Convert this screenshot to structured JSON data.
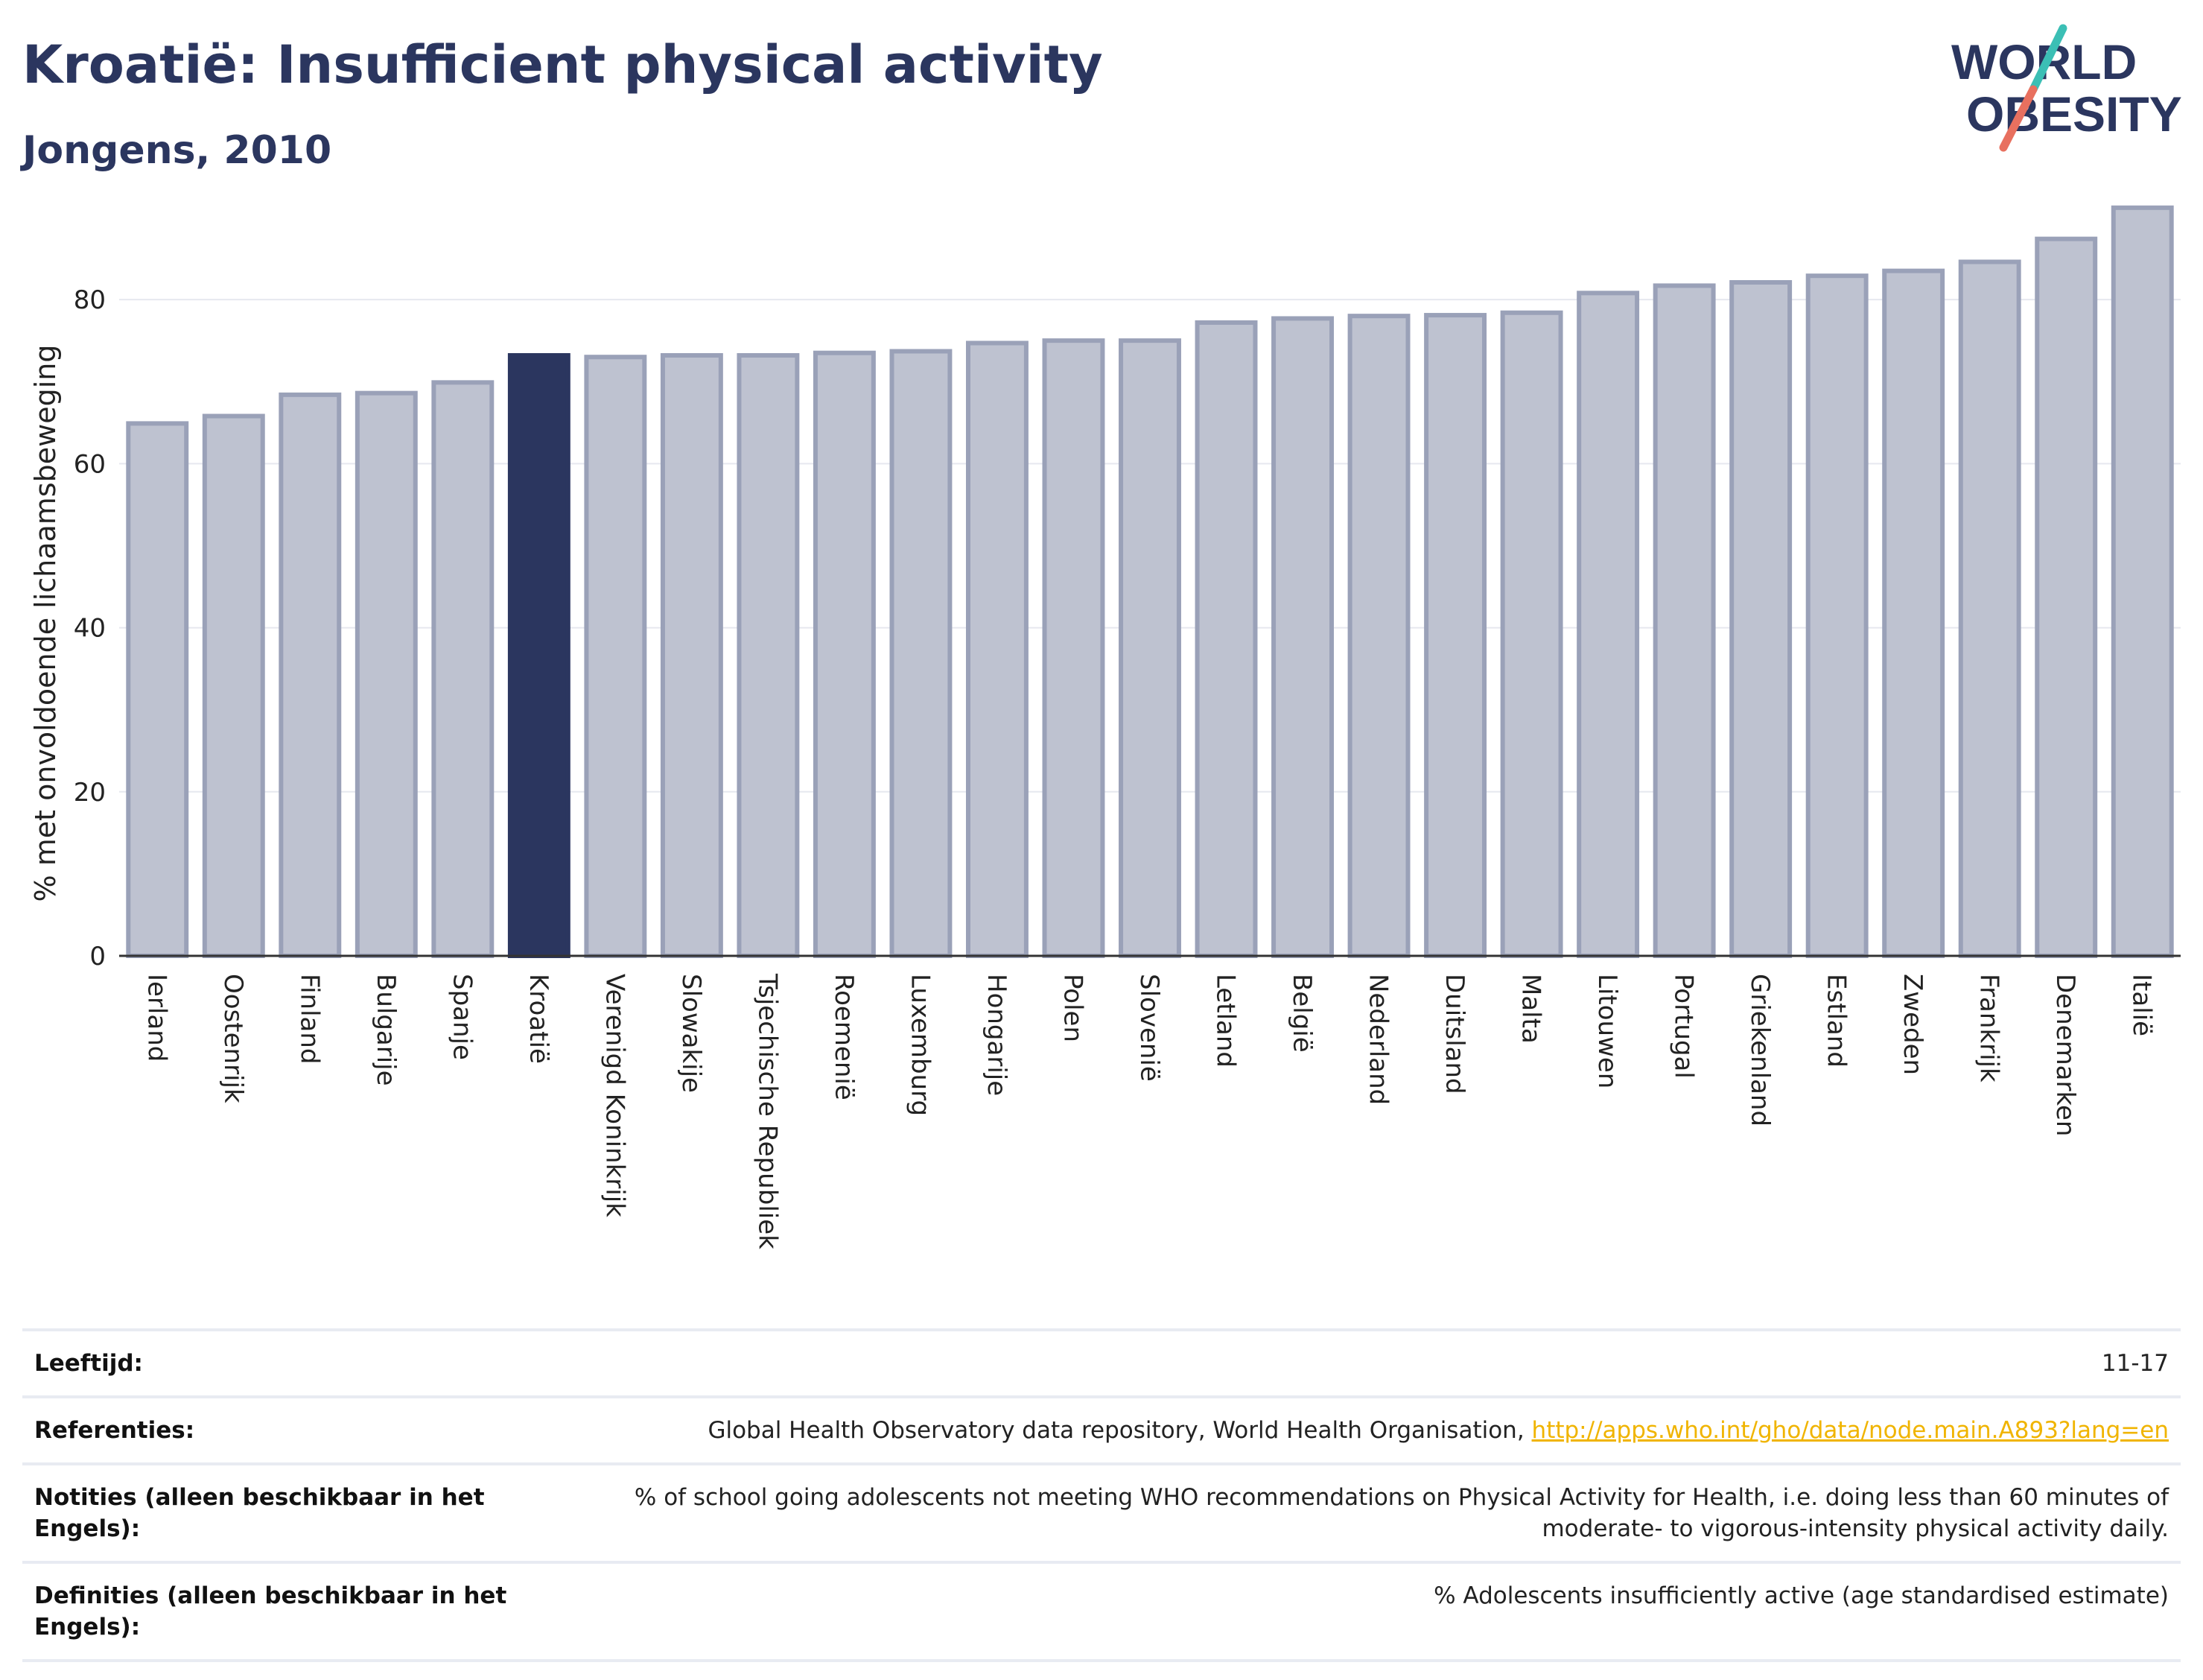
{
  "header": {
    "title": "Kroatië: Insufficient physical activity",
    "subtitle": "Jongens, 2010"
  },
  "logo": {
    "line1": "WORLD",
    "line2": "OBESITY",
    "slash_color_top": "#3bbfb5",
    "slash_color_bottom": "#e8705f"
  },
  "colors": {
    "highlight": "#2b365f",
    "bar": "#bec2d0",
    "bar_border": "#9aa1b8",
    "grid": "#e6e8ef"
  },
  "chart_data": {
    "type": "bar",
    "title": "Kroatië: Insufficient physical activity",
    "subtitle": "Jongens, 2010",
    "ylabel": "% met onvoldoende lichaamsbeweging",
    "xlabel": "",
    "ylim": [
      0,
      92
    ],
    "yticks": [
      0,
      20,
      40,
      60,
      80
    ],
    "grid": true,
    "highlight": "Kroatië",
    "categories": [
      "Ierland",
      "Oostenrijk",
      "Finland",
      "Bulgarije",
      "Spanje",
      "Kroatië",
      "Verenigd Koninkrijk",
      "Slowakije",
      "Tsjechische Republiek",
      "Roemenië",
      "Luxemburg",
      "Hongarije",
      "Polen",
      "Slovenië",
      "Letland",
      "België",
      "Nederland",
      "Duitsland",
      "Malta",
      "Litouwen",
      "Portugal",
      "Griekenland",
      "Estland",
      "Zweden",
      "Frankrijk",
      "Denemarken",
      "Italië"
    ],
    "values": [
      64.9,
      65.8,
      68.4,
      68.6,
      69.9,
      73.2,
      73.0,
      73.2,
      73.2,
      73.5,
      73.7,
      74.7,
      75.0,
      75.0,
      77.2,
      77.7,
      78.0,
      78.1,
      78.4,
      80.8,
      81.7,
      82.1,
      82.9,
      83.5,
      84.6,
      87.4,
      91.2
    ]
  },
  "notes": [
    {
      "label": "Leeftijd:",
      "value": "11-17"
    },
    {
      "label": "Referenties:",
      "value": "Global Health Observatory data repository, World Health Organisation,",
      "link": "http://apps.who.int/gho/data/node.main.A893?lang=en"
    },
    {
      "label": "Notities (alleen beschikbaar in het Engels):",
      "value": "% of school going adolescents not meeting WHO recommendations on Physical Activity for Health, i.e. doing less than 60 minutes of moderate- to vigorous-intensity physical activity daily."
    },
    {
      "label": "Definities (alleen beschikbaar in het Engels):",
      "value": "% Adolescents insufficiently active (age standardised estimate)"
    }
  ]
}
